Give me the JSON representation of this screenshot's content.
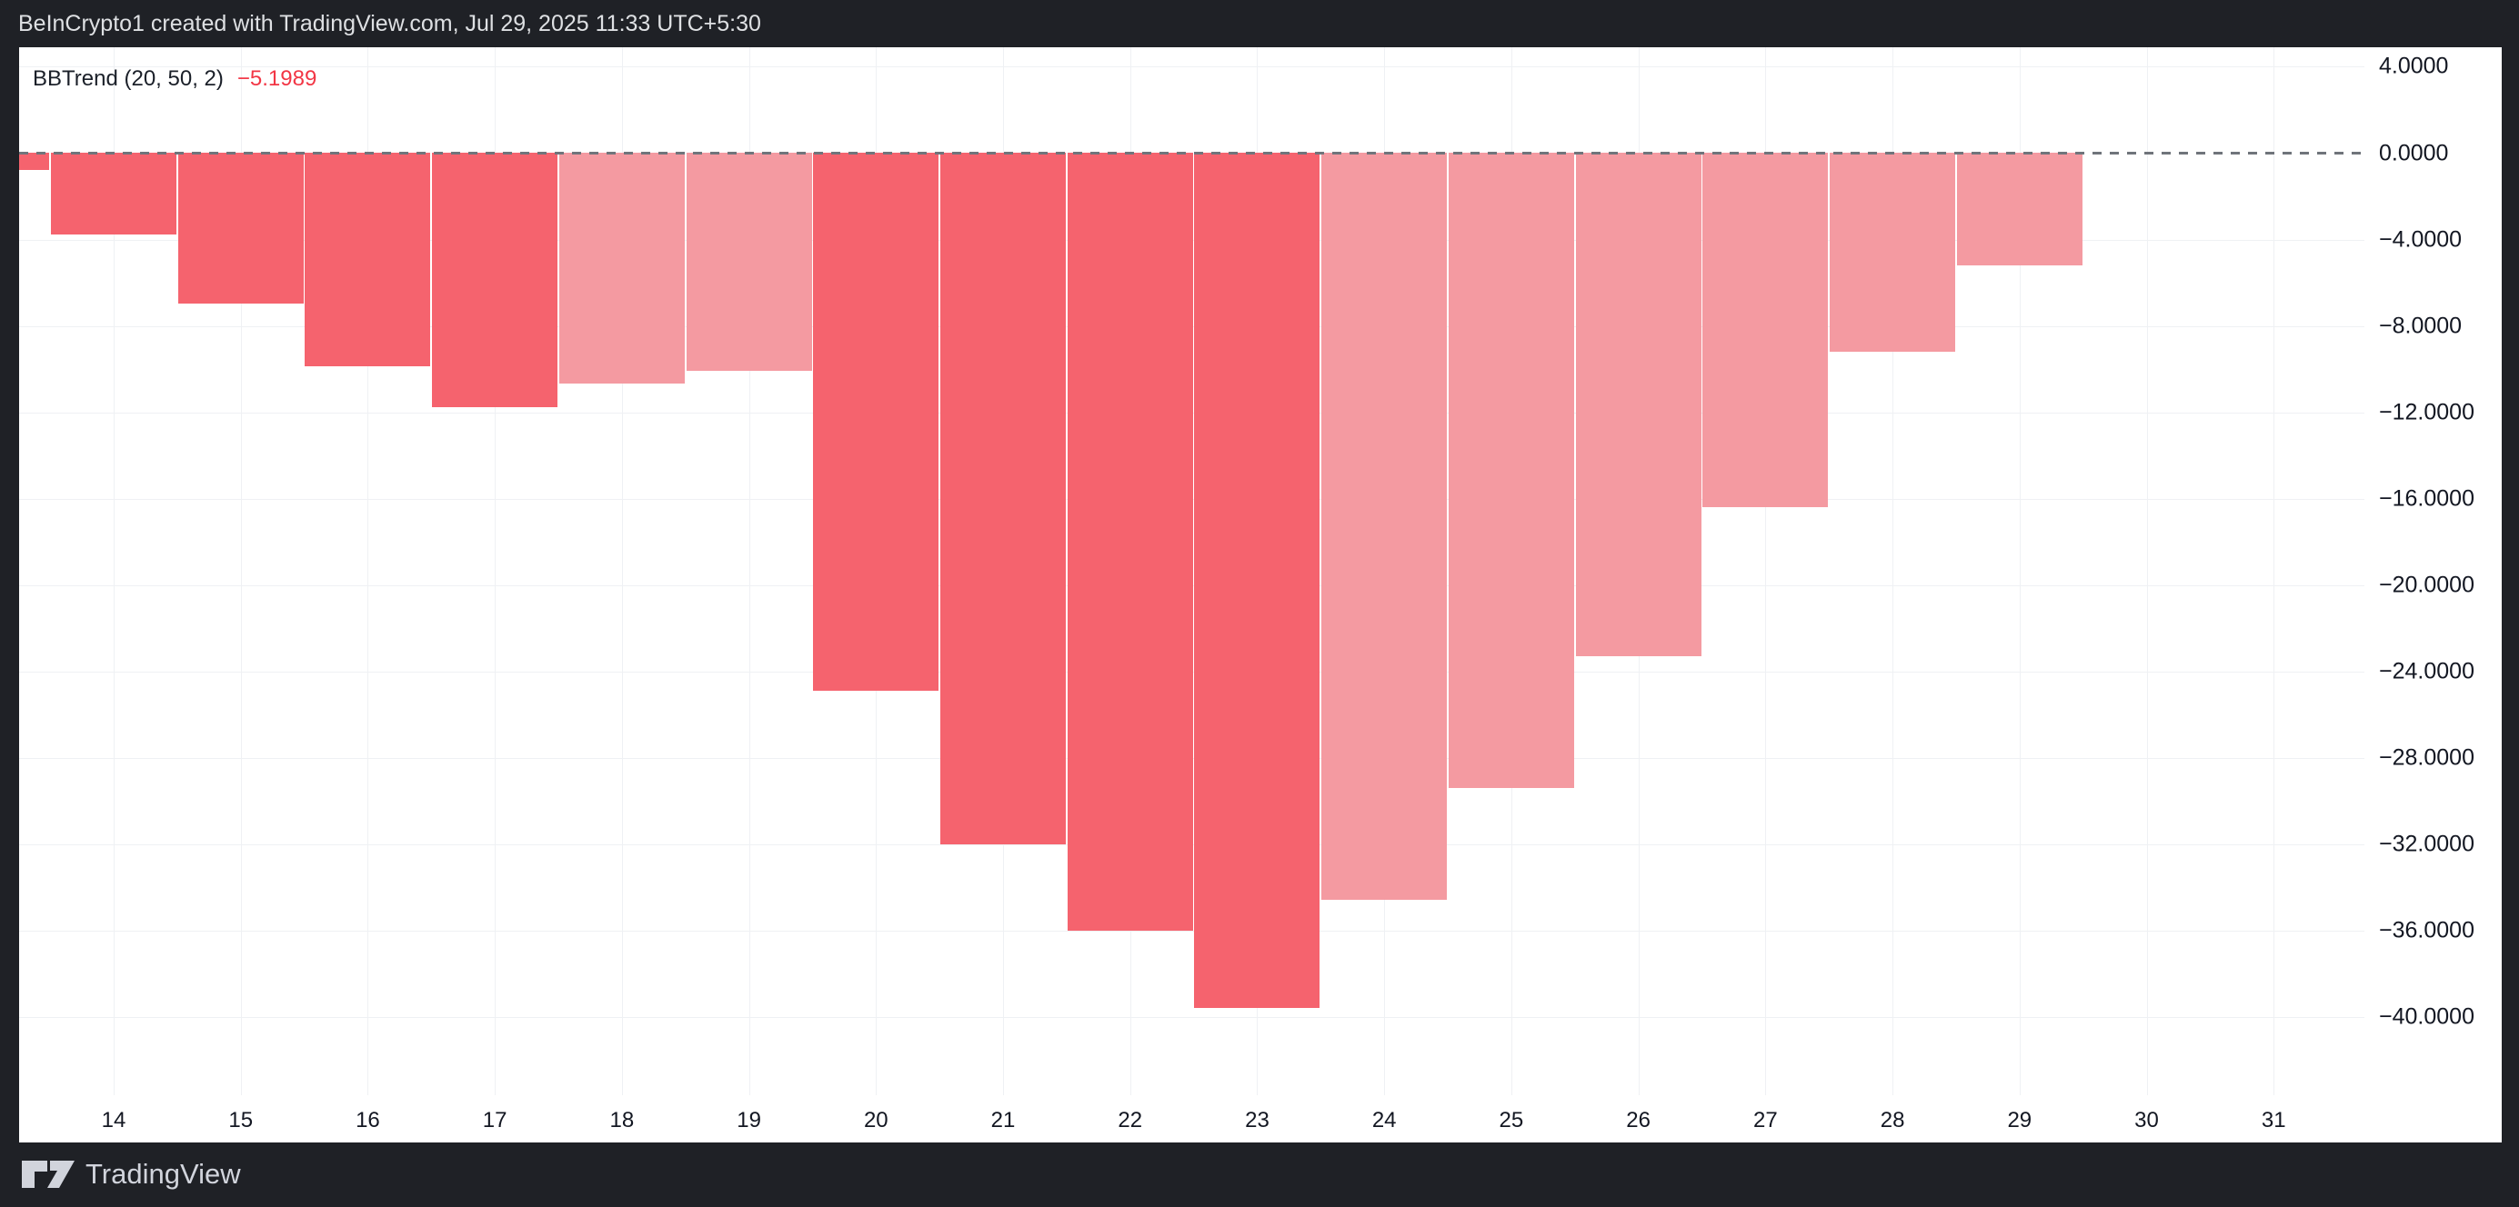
{
  "header": {
    "title": "BeInCrypto1 created with TradingView.com, Jul 29, 2025 11:33 UTC+5:30"
  },
  "indicator": {
    "name": "BBTrend (20, 50, 2)",
    "value": "−5.1989",
    "value_color": "#F23645"
  },
  "footer": {
    "brand": "TradingView"
  },
  "chart_data": {
    "type": "bar",
    "title": "BBTrend (20, 50, 2)",
    "last_value_readout": -5.1989,
    "ylabel": "",
    "xlabel": "",
    "ylim": [
      -43,
      4.9
    ],
    "grid": true,
    "zero_line": "dashed",
    "colors": {
      "falling": "#F5636E",
      "rising": "#F49AA1"
    },
    "bars": [
      {
        "day": 13,
        "value": -0.8,
        "trend": "falling"
      },
      {
        "day": 14,
        "value": -3.8,
        "trend": "falling"
      },
      {
        "day": 15,
        "value": -7.0,
        "trend": "falling"
      },
      {
        "day": 16,
        "value": -9.9,
        "trend": "falling"
      },
      {
        "day": 17,
        "value": -11.8,
        "trend": "falling"
      },
      {
        "day": 18,
        "value": -10.7,
        "trend": "rising"
      },
      {
        "day": 19,
        "value": -10.1,
        "trend": "rising"
      },
      {
        "day": 20,
        "value": -24.9,
        "trend": "falling"
      },
      {
        "day": 21,
        "value": -32.0,
        "trend": "falling"
      },
      {
        "day": 22,
        "value": -36.0,
        "trend": "falling"
      },
      {
        "day": 23,
        "value": -39.6,
        "trend": "falling"
      },
      {
        "day": 24,
        "value": -34.6,
        "trend": "rising"
      },
      {
        "day": 25,
        "value": -29.4,
        "trend": "rising"
      },
      {
        "day": 26,
        "value": -23.3,
        "trend": "rising"
      },
      {
        "day": 27,
        "value": -16.4,
        "trend": "rising"
      },
      {
        "day": 28,
        "value": -9.2,
        "trend": "rising"
      },
      {
        "day": 29,
        "value": -5.1989,
        "trend": "rising"
      }
    ],
    "y_ticks": [
      {
        "label": "4.0000",
        "value": 4
      },
      {
        "label": "0.0000",
        "value": 0
      },
      {
        "label": "−4.0000",
        "value": -4
      },
      {
        "label": "−8.0000",
        "value": -8
      },
      {
        "label": "−12.0000",
        "value": -12
      },
      {
        "label": "−16.0000",
        "value": -16
      },
      {
        "label": "−20.0000",
        "value": -20
      },
      {
        "label": "−24.0000",
        "value": -24
      },
      {
        "label": "−28.0000",
        "value": -28
      },
      {
        "label": "−32.0000",
        "value": -32
      },
      {
        "label": "−36.0000",
        "value": -36
      },
      {
        "label": "−40.0000",
        "value": -40
      }
    ],
    "x_ticks": [
      "14",
      "15",
      "16",
      "17",
      "18",
      "19",
      "20",
      "21",
      "22",
      "23",
      "24",
      "25",
      "26",
      "27",
      "28",
      "29",
      "30",
      "31"
    ]
  }
}
